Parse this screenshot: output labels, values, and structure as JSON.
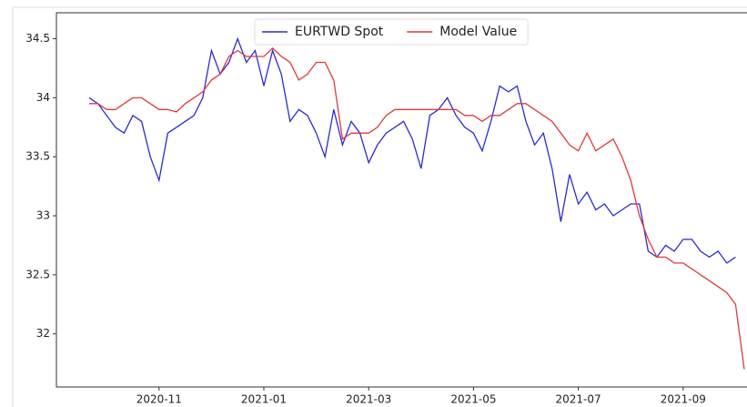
{
  "chart_data": {
    "type": "line",
    "categories": [
      null,
      null,
      null,
      null,
      null,
      null,
      null,
      null,
      "2020-11",
      null,
      null,
      null,
      null,
      null,
      null,
      null,
      null,
      null,
      null,
      null,
      "2021-01",
      null,
      null,
      null,
      null,
      null,
      null,
      null,
      null,
      null,
      null,
      null,
      "2021-03",
      null,
      null,
      null,
      null,
      null,
      null,
      null,
      null,
      null,
      null,
      null,
      "2021-05",
      null,
      null,
      null,
      null,
      null,
      null,
      null,
      null,
      null,
      null,
      null,
      "2021-07",
      null,
      null,
      null,
      null,
      null,
      null,
      null,
      null,
      null,
      null,
      null,
      "2021-09",
      null,
      null,
      null,
      null,
      null,
      null,
      null
    ],
    "series": [
      {
        "name": "EURTWD Spot",
        "color": "#2b2bd4",
        "values": [
          34.0,
          33.95,
          33.85,
          33.75,
          33.7,
          33.85,
          33.8,
          33.5,
          33.3,
          33.7,
          33.75,
          33.8,
          33.85,
          34.0,
          34.4,
          34.2,
          34.3,
          34.5,
          34.3,
          34.4,
          34.1,
          34.4,
          34.2,
          33.8,
          33.9,
          33.85,
          33.7,
          33.5,
          33.9,
          33.6,
          33.8,
          33.7,
          33.45,
          33.6,
          33.7,
          33.75,
          33.8,
          33.65,
          33.4,
          33.85,
          33.9,
          34.0,
          33.85,
          33.75,
          33.7,
          33.55,
          33.8,
          34.1,
          34.05,
          34.1,
          33.8,
          33.6,
          33.7,
          33.4,
          32.95,
          33.35,
          33.1,
          33.2,
          33.05,
          33.1,
          33.0,
          33.05,
          33.1,
          33.1,
          32.7,
          32.65,
          32.75,
          32.7,
          32.8,
          32.8,
          32.7,
          32.65,
          32.7,
          32.6,
          32.65,
          null
        ]
      },
      {
        "name": "Model Value",
        "color": "#e03a3a",
        "values": [
          33.95,
          33.95,
          33.9,
          33.9,
          33.95,
          34.0,
          34.0,
          33.95,
          33.9,
          33.9,
          33.88,
          33.95,
          34.0,
          34.05,
          34.15,
          34.2,
          34.35,
          34.4,
          34.35,
          34.35,
          34.35,
          34.42,
          34.35,
          34.3,
          34.15,
          34.2,
          34.3,
          34.3,
          34.15,
          33.65,
          33.7,
          33.7,
          33.7,
          33.75,
          33.85,
          33.9,
          33.9,
          33.9,
          33.9,
          33.9,
          33.9,
          33.9,
          33.9,
          33.85,
          33.85,
          33.8,
          33.85,
          33.85,
          33.9,
          33.95,
          33.95,
          33.9,
          33.85,
          33.8,
          33.7,
          33.6,
          33.55,
          33.7,
          33.55,
          33.6,
          33.65,
          33.5,
          33.3,
          33.0,
          32.8,
          32.65,
          32.65,
          32.6,
          32.6,
          32.55,
          32.5,
          32.45,
          32.4,
          32.35,
          32.25,
          31.7
        ]
      }
    ],
    "ylim": [
      31.55,
      34.72
    ],
    "yticks": [
      32.0,
      32.5,
      33.0,
      33.5,
      34.0,
      34.5
    ],
    "legend": "upper center"
  }
}
